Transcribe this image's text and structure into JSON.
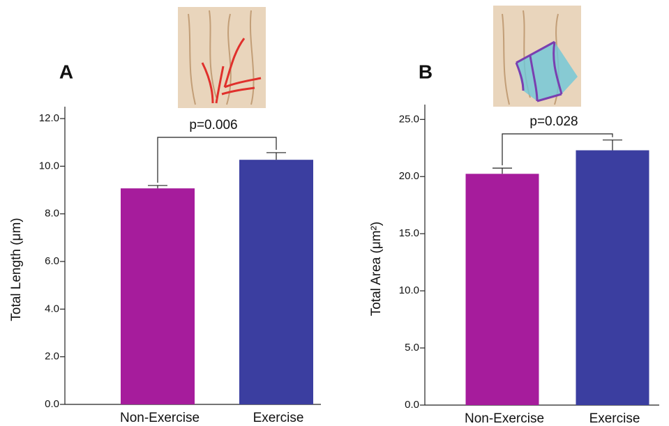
{
  "chart_data": [
    {
      "type": "bar",
      "panel": "A",
      "ylabel": "Total Length (μm)",
      "annotation": "p=0.006",
      "categories": [
        "Non-Exercise",
        "Exercise"
      ],
      "values": [
        9.07,
        10.27
      ],
      "errors": [
        0.12,
        0.3
      ],
      "colors": [
        "#a61c9c",
        "#3b3ea0"
      ],
      "ylim": [
        0,
        12.5
      ],
      "yticks": [
        {
          "value": 0,
          "label": "0.0"
        },
        {
          "value": 2,
          "label": "2.0"
        },
        {
          "value": 4,
          "label": "4.0"
        },
        {
          "value": 6,
          "label": "6.0"
        },
        {
          "value": 8,
          "label": "8.0"
        },
        {
          "value": 10,
          "label": "10.0"
        },
        {
          "value": 12,
          "label": "12.0"
        }
      ]
    },
    {
      "type": "bar",
      "panel": "B",
      "ylabel": "Total Area (μm²)",
      "annotation": "p=0.028",
      "categories": [
        "Non-Exercise",
        "Exercise"
      ],
      "values": [
        20.24,
        22.3
      ],
      "errors": [
        0.5,
        0.9
      ],
      "colors": [
        "#a61c9c",
        "#3b3ea0"
      ],
      "ylim": [
        0,
        26.3
      ],
      "yticks": [
        {
          "value": 0,
          "label": "0.0"
        },
        {
          "value": 5,
          "label": "5.0"
        },
        {
          "value": 10,
          "label": "10.0"
        },
        {
          "value": 15,
          "label": "15.0"
        },
        {
          "value": 20,
          "label": "20.0"
        },
        {
          "value": 25,
          "label": "25.0"
        }
      ]
    }
  ]
}
